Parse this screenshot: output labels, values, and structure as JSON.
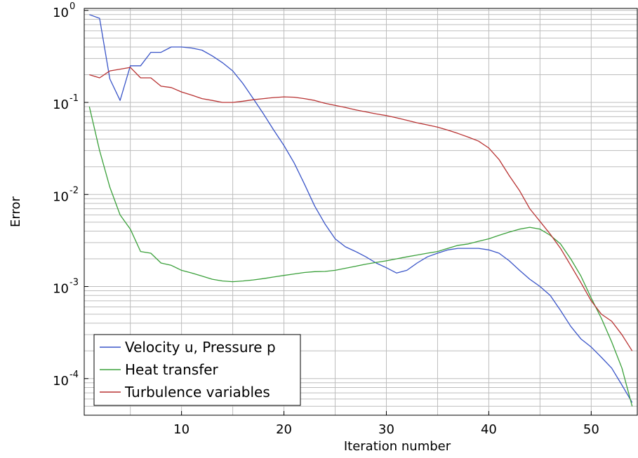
{
  "chart_data": {
    "type": "line",
    "xlabel": "Iteration number",
    "ylabel": "Error",
    "xlim": [
      0.5,
      54.5
    ],
    "ylim": [
      4e-05,
      1.05
    ],
    "yscale": "log",
    "grid": true,
    "legend_position": "bottom-left",
    "x_ticks": [
      {
        "value": 10,
        "label": "10"
      },
      {
        "value": 20,
        "label": "20"
      },
      {
        "value": 30,
        "label": "30"
      },
      {
        "value": 40,
        "label": "40"
      },
      {
        "value": 50,
        "label": "50"
      }
    ],
    "y_ticks": [
      {
        "value": 1,
        "base": "10",
        "exp": "0"
      },
      {
        "value": 0.1,
        "base": "10",
        "exp": "-1"
      },
      {
        "value": 0.01,
        "base": "10",
        "exp": "-2"
      },
      {
        "value": 0.001,
        "base": "10",
        "exp": "-3"
      },
      {
        "value": 0.0001,
        "base": "10",
        "exp": "-4"
      }
    ],
    "series": [
      {
        "name": "Velocity u, Pressure p",
        "color": "#3a55c8",
        "x": [
          1,
          2,
          3,
          4,
          5,
          6,
          7,
          8,
          9,
          10,
          11,
          12,
          13,
          14,
          15,
          16,
          17,
          18,
          19,
          20,
          21,
          22,
          23,
          24,
          25,
          26,
          27,
          28,
          29,
          30,
          31,
          32,
          33,
          34,
          35,
          36,
          37,
          38,
          39,
          40,
          41,
          42,
          43,
          44,
          45,
          46,
          47,
          48,
          49,
          50,
          51,
          52,
          53,
          54
        ],
        "y": [
          0.9,
          0.82,
          0.18,
          0.105,
          0.25,
          0.25,
          0.35,
          0.35,
          0.4,
          0.4,
          0.39,
          0.37,
          0.32,
          0.27,
          0.22,
          0.16,
          0.11,
          0.075,
          0.05,
          0.034,
          0.022,
          0.013,
          0.0075,
          0.0048,
          0.0033,
          0.0027,
          0.0024,
          0.0021,
          0.0018,
          0.0016,
          0.0014,
          0.0015,
          0.0018,
          0.0021,
          0.0023,
          0.0025,
          0.0026,
          0.0026,
          0.0026,
          0.0025,
          0.0023,
          0.0019,
          0.0015,
          0.0012,
          0.001,
          0.0008,
          0.00055,
          0.00037,
          0.00027,
          0.00022,
          0.00017,
          0.00013,
          8.5e-05,
          5.5e-05
        ]
      },
      {
        "name": "Heat transfer",
        "color": "#3aa03a",
        "x": [
          1,
          2,
          3,
          4,
          5,
          6,
          7,
          8,
          9,
          10,
          11,
          12,
          13,
          14,
          15,
          16,
          17,
          18,
          19,
          20,
          21,
          22,
          23,
          24,
          25,
          26,
          27,
          28,
          29,
          30,
          31,
          32,
          33,
          34,
          35,
          36,
          37,
          38,
          39,
          40,
          41,
          42,
          43,
          44,
          45,
          46,
          47,
          48,
          49,
          50,
          51,
          52,
          53,
          54
        ],
        "y": [
          0.09,
          0.03,
          0.012,
          0.006,
          0.0042,
          0.0024,
          0.0023,
          0.0018,
          0.0017,
          0.0015,
          0.0014,
          0.0013,
          0.0012,
          0.00115,
          0.00113,
          0.00115,
          0.00118,
          0.00122,
          0.00127,
          0.00132,
          0.00137,
          0.00142,
          0.00145,
          0.00146,
          0.0015,
          0.00158,
          0.00166,
          0.00175,
          0.00183,
          0.0019,
          0.002,
          0.0021,
          0.0022,
          0.0023,
          0.0024,
          0.0026,
          0.0028,
          0.0029,
          0.0031,
          0.0033,
          0.0036,
          0.0039,
          0.0042,
          0.0044,
          0.0042,
          0.0036,
          0.0029,
          0.002,
          0.0013,
          0.00075,
          0.00045,
          0.00025,
          0.00013,
          5e-05
        ]
      },
      {
        "name": "Turbulence variables",
        "color": "#b83232",
        "x": [
          1,
          2,
          3,
          4,
          5,
          6,
          7,
          8,
          9,
          10,
          11,
          12,
          13,
          14,
          15,
          16,
          17,
          18,
          19,
          20,
          21,
          22,
          23,
          24,
          25,
          26,
          27,
          28,
          29,
          30,
          31,
          32,
          33,
          34,
          35,
          36,
          37,
          38,
          39,
          40,
          41,
          42,
          43,
          44,
          45,
          46,
          47,
          48,
          49,
          50,
          51,
          52,
          53,
          54
        ],
        "y": [
          0.2,
          0.185,
          0.22,
          0.23,
          0.24,
          0.185,
          0.185,
          0.15,
          0.145,
          0.13,
          0.12,
          0.11,
          0.105,
          0.1,
          0.1,
          0.103,
          0.107,
          0.11,
          0.113,
          0.115,
          0.114,
          0.11,
          0.105,
          0.098,
          0.093,
          0.088,
          0.083,
          0.079,
          0.075,
          0.072,
          0.068,
          0.064,
          0.06,
          0.057,
          0.054,
          0.05,
          0.046,
          0.042,
          0.038,
          0.032,
          0.024,
          0.016,
          0.011,
          0.007,
          0.0051,
          0.0037,
          0.0026,
          0.0017,
          0.0011,
          0.0007,
          0.0005,
          0.00042,
          0.0003,
          0.0002
        ]
      }
    ]
  }
}
